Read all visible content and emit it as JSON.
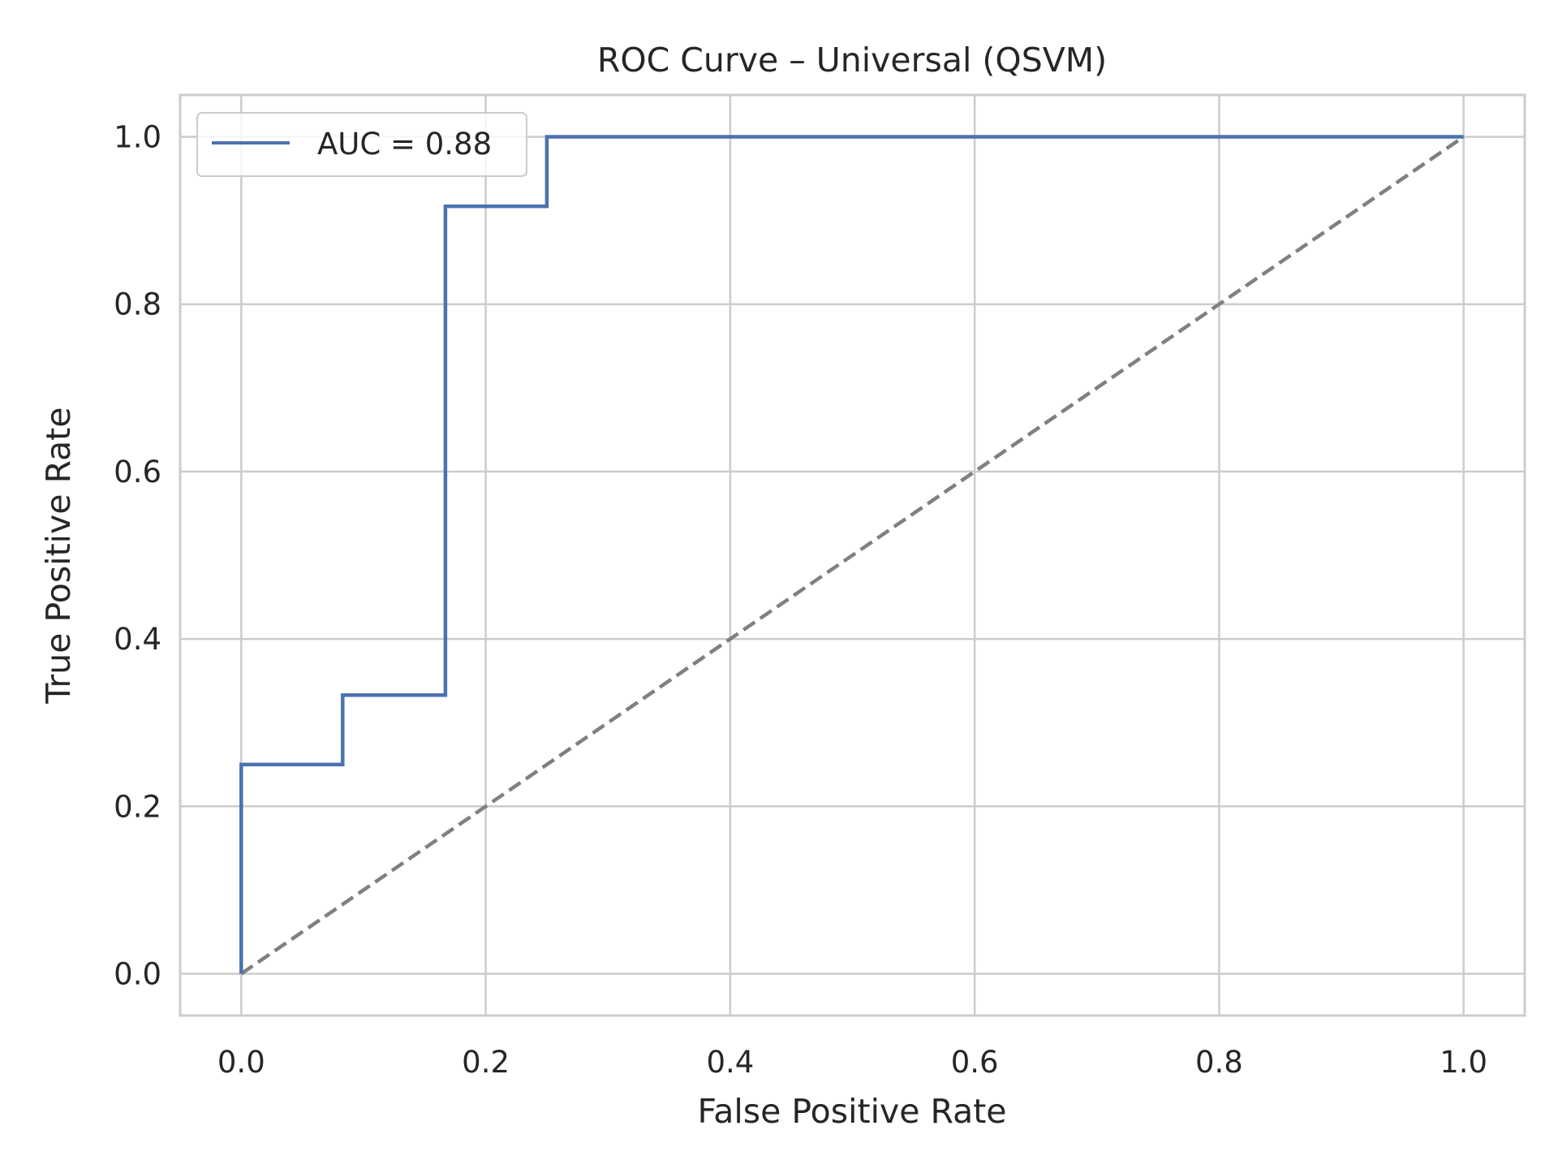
{
  "chart_data": {
    "type": "line",
    "title": "ROC Curve – Universal (QSVM)",
    "xlabel": "False Positive Rate",
    "ylabel": "True Positive Rate",
    "xlim": [
      -0.05,
      1.05
    ],
    "ylim": [
      -0.05,
      1.05
    ],
    "xticks": [
      0.0,
      0.2,
      0.4,
      0.6,
      0.8,
      1.0
    ],
    "yticks": [
      0.0,
      0.2,
      0.4,
      0.6,
      0.8,
      1.0
    ],
    "xtick_labels": [
      "0.0",
      "0.2",
      "0.4",
      "0.6",
      "0.8",
      "1.0"
    ],
    "ytick_labels": [
      "0.0",
      "0.2",
      "0.4",
      "0.6",
      "0.8",
      "1.0"
    ],
    "grid": true,
    "legend_position": "top-left",
    "series": [
      {
        "name": "AUC = 0.88",
        "color": "#4c72b0",
        "style": "solid",
        "x": [
          0.0,
          0.0,
          0.083,
          0.083,
          0.167,
          0.167,
          0.25,
          0.25,
          1.0
        ],
        "y": [
          0.0,
          0.25,
          0.25,
          0.333,
          0.333,
          0.917,
          0.917,
          1.0,
          1.0
        ]
      },
      {
        "color": "#808080",
        "style": "dashed",
        "x": [
          0.0,
          1.0
        ],
        "y": [
          0.0,
          1.0
        ]
      }
    ]
  }
}
